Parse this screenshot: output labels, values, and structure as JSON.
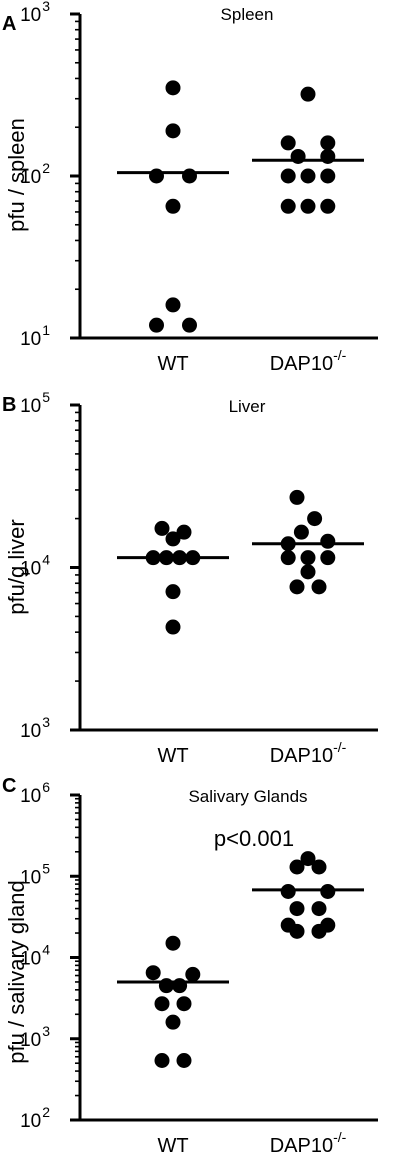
{
  "chart_data": [
    {
      "panel_label": "A",
      "type": "scatter",
      "title": "Spleen",
      "ylabel": "pfu / spleen",
      "yscale": "log",
      "ylim": [
        10,
        1000
      ],
      "y_tick_labels": [
        {
          "base": "10",
          "exp": "1",
          "value": 10
        },
        {
          "base": "10",
          "exp": "2",
          "value": 100
        },
        {
          "base": "10",
          "exp": "3",
          "value": 1000
        }
      ],
      "categories": [
        {
          "base": "WT",
          "sup": ""
        },
        {
          "base": "DAP10",
          "sup": "-/-"
        }
      ],
      "series": [
        {
          "points": [
            {
              "x": -0.3,
              "y": 12
            },
            {
              "x": 0.3,
              "y": 12
            },
            {
              "x": 0,
              "y": 16
            },
            {
              "x": 0,
              "y": 65
            },
            {
              "x": -0.3,
              "y": 100
            },
            {
              "x": 0.3,
              "y": 100
            },
            {
              "x": 0,
              "y": 190
            },
            {
              "x": 0,
              "y": 350
            }
          ],
          "mean": 105
        },
        {
          "points": [
            {
              "x": -0.36,
              "y": 65
            },
            {
              "x": 0,
              "y": 65
            },
            {
              "x": 0.36,
              "y": 65
            },
            {
              "x": -0.36,
              "y": 100
            },
            {
              "x": 0,
              "y": 100
            },
            {
              "x": 0.36,
              "y": 100
            },
            {
              "x": -0.18,
              "y": 132
            },
            {
              "x": 0.36,
              "y": 132
            },
            {
              "x": -0.36,
              "y": 160
            },
            {
              "x": 0.36,
              "y": 160
            },
            {
              "x": 0,
              "y": 320
            }
          ],
          "mean": 125
        }
      ],
      "annotation": "",
      "point_color": "#000000"
    },
    {
      "panel_label": "B",
      "type": "scatter",
      "title": "Liver",
      "ylabel": "pfu/g liver",
      "yscale": "log",
      "ylim": [
        1000,
        100000
      ],
      "y_tick_labels": [
        {
          "base": "10",
          "exp": "3",
          "value": 1000
        },
        {
          "base": "10",
          "exp": "4",
          "value": 10000
        },
        {
          "base": "10",
          "exp": "5",
          "value": 100000
        }
      ],
      "categories": [
        {
          "base": "WT",
          "sup": ""
        },
        {
          "base": "DAP10",
          "sup": "-/-"
        }
      ],
      "series": [
        {
          "points": [
            {
              "x": 0,
              "y": 4300
            },
            {
              "x": 0,
              "y": 7100
            },
            {
              "x": -0.36,
              "y": 11500
            },
            {
              "x": -0.12,
              "y": 11500
            },
            {
              "x": 0.12,
              "y": 11500
            },
            {
              "x": 0.36,
              "y": 11500
            },
            {
              "x": 0,
              "y": 15000
            },
            {
              "x": -0.2,
              "y": 17400
            },
            {
              "x": 0.2,
              "y": 16500
            }
          ],
          "mean": 11500
        },
        {
          "points": [
            {
              "x": -0.2,
              "y": 7600
            },
            {
              "x": 0.2,
              "y": 7600
            },
            {
              "x": 0,
              "y": 9400
            },
            {
              "x": -0.36,
              "y": 11500
            },
            {
              "x": 0,
              "y": 11500
            },
            {
              "x": 0.36,
              "y": 11500
            },
            {
              "x": -0.36,
              "y": 14000
            },
            {
              "x": 0.36,
              "y": 14500
            },
            {
              "x": -0.12,
              "y": 16500
            },
            {
              "x": 0.12,
              "y": 20000
            },
            {
              "x": -0.2,
              "y": 27000
            }
          ],
          "mean": 14000
        }
      ],
      "annotation": "",
      "point_color": "#000000"
    },
    {
      "panel_label": "C",
      "type": "scatter",
      "title": "Salivary Glands",
      "ylabel": "pfu / salivary gland",
      "yscale": "log",
      "ylim": [
        100,
        1000000
      ],
      "y_tick_labels": [
        {
          "base": "10",
          "exp": "2",
          "value": 100
        },
        {
          "base": "10",
          "exp": "3",
          "value": 1000
        },
        {
          "base": "10",
          "exp": "4",
          "value": 10000
        },
        {
          "base": "10",
          "exp": "5",
          "value": 100000
        },
        {
          "base": "10",
          "exp": "6",
          "value": 1000000
        }
      ],
      "categories": [
        {
          "base": "WT",
          "sup": ""
        },
        {
          "base": "DAP10",
          "sup": "-/-"
        }
      ],
      "series": [
        {
          "points": [
            {
              "x": -0.2,
              "y": 540
            },
            {
              "x": 0.2,
              "y": 540
            },
            {
              "x": 0,
              "y": 1600
            },
            {
              "x": -0.2,
              "y": 2700
            },
            {
              "x": 0.2,
              "y": 2700
            },
            {
              "x": -0.12,
              "y": 4500
            },
            {
              "x": 0.12,
              "y": 4500
            },
            {
              "x": -0.36,
              "y": 6500
            },
            {
              "x": 0.36,
              "y": 6200
            },
            {
              "x": 0,
              "y": 15000
            }
          ],
          "mean": 5000
        },
        {
          "points": [
            {
              "x": -0.2,
              "y": 21000
            },
            {
              "x": 0.2,
              "y": 21000
            },
            {
              "x": -0.36,
              "y": 25000
            },
            {
              "x": 0.36,
              "y": 25000
            },
            {
              "x": -0.2,
              "y": 40000
            },
            {
              "x": 0.2,
              "y": 40000
            },
            {
              "x": -0.36,
              "y": 65000
            },
            {
              "x": 0.36,
              "y": 65000
            },
            {
              "x": -0.2,
              "y": 130000
            },
            {
              "x": 0.2,
              "y": 130000
            },
            {
              "x": 0,
              "y": 165000
            }
          ],
          "mean": 68000
        }
      ],
      "annotation": "p<0.001",
      "point_color": "#000000"
    }
  ]
}
